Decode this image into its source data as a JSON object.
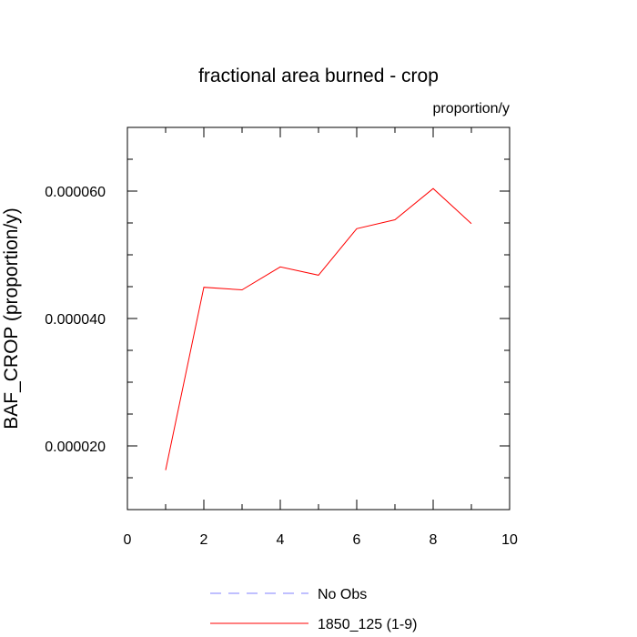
{
  "chart_data": {
    "type": "line",
    "title": "fractional area burned - crop",
    "units_label": "proportion/y",
    "ylabel": "BAF_CROP  (proportion/y)",
    "xlabel": "",
    "xlim": [
      0,
      10
    ],
    "ylim": [
      1e-05,
      7e-05
    ],
    "x_ticks": [
      0,
      2,
      4,
      6,
      8,
      10
    ],
    "x_tick_labels": [
      "0",
      "2",
      "4",
      "6",
      "8",
      "10"
    ],
    "x_minor_step": 1,
    "y_ticks": [
      2e-05,
      4e-05,
      6e-05
    ],
    "y_tick_labels": [
      "0.000020",
      "0.000040",
      "0.000060"
    ],
    "y_minor_step": 5e-06,
    "grid": false,
    "series": [
      {
        "name": "1850_125 (1-9)",
        "color": "#ff0000",
        "dash": "solid",
        "x": [
          1,
          2,
          3,
          4,
          5,
          6,
          7,
          8,
          9
        ],
        "values": [
          1.62e-05,
          4.49e-05,
          4.45e-05,
          4.81e-05,
          4.68e-05,
          5.41e-05,
          5.55e-05,
          6.04e-05,
          5.49e-05
        ]
      }
    ],
    "legend": [
      {
        "label": "No Obs",
        "color": "#8080ff",
        "dash": "dashed"
      },
      {
        "label": "1850_125 (1-9)",
        "color": "#ff0000",
        "dash": "solid"
      }
    ],
    "legend_position": "bottom"
  }
}
